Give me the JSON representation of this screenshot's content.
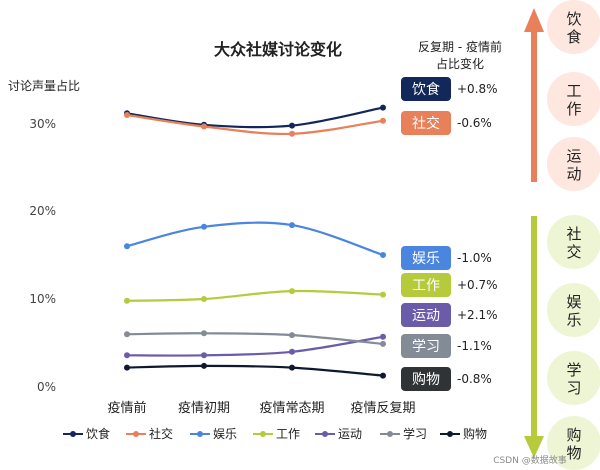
{
  "chart_data": {
    "type": "line",
    "title": "大众社媒讨论变化",
    "ylabel": "讨论声量占比",
    "categories": [
      "疫情前",
      "疫情初期",
      "疫情常态期",
      "疫情反复期"
    ],
    "y_ticks": [
      "0%",
      "10%",
      "20%",
      "30%"
    ],
    "axis_break": true,
    "grid": false,
    "legend_position": "bottom",
    "series": [
      {
        "name": "饮食",
        "color": "#13285a",
        "values": [
          31.3,
          29.9,
          29.8,
          32.0
        ]
      },
      {
        "name": "社交",
        "color": "#e8805a",
        "values": [
          31.1,
          29.7,
          28.8,
          30.4
        ]
      },
      {
        "name": "娱乐",
        "color": "#4a86e0",
        "values": [
          16.0,
          18.2,
          18.4,
          15.0
        ]
      },
      {
        "name": "工作",
        "color": "#b5cb3c",
        "values": [
          9.8,
          10.0,
          10.9,
          10.5
        ]
      },
      {
        "name": "运动",
        "color": "#6a5ca8",
        "values": [
          3.6,
          3.6,
          4.0,
          5.7
        ]
      },
      {
        "name": "学习",
        "color": "#838b97",
        "values": [
          6.0,
          6.1,
          5.9,
          4.9
        ]
      },
      {
        "name": "购物",
        "color": "#0e1930",
        "values": [
          2.2,
          2.4,
          2.2,
          1.3
        ]
      }
    ]
  },
  "change_panel": {
    "header": [
      "反复期 - 疫情前",
      "占比变化"
    ],
    "items": [
      {
        "label": "饮食",
        "delta": "+0.8%",
        "color": "#13285a"
      },
      {
        "label": "社交",
        "delta": "-0.6%",
        "color": "#e8805a"
      },
      {
        "label": "娱乐",
        "delta": "-1.0%",
        "color": "#4a86e0"
      },
      {
        "label": "工作",
        "delta": "+0.7%",
        "color": "#b5cb3c"
      },
      {
        "label": "运动",
        "delta": "+2.1%",
        "color": "#6a5ca8"
      },
      {
        "label": "学习",
        "delta": "-1.1%",
        "color": "#838b97"
      },
      {
        "label": "购物",
        "delta": "-0.8%",
        "color": "#303336"
      }
    ]
  },
  "side_panel": {
    "up": {
      "color": "#e8805a",
      "circle_fill": "#fde7de",
      "items": [
        "饮食",
        "工作",
        "运动"
      ]
    },
    "down": {
      "color": "#b5cb3c",
      "circle_fill": "#eef5d4",
      "items": [
        "社交",
        "娱乐",
        "学习",
        "购物"
      ]
    }
  },
  "watermark": "CSDN @数据故事"
}
